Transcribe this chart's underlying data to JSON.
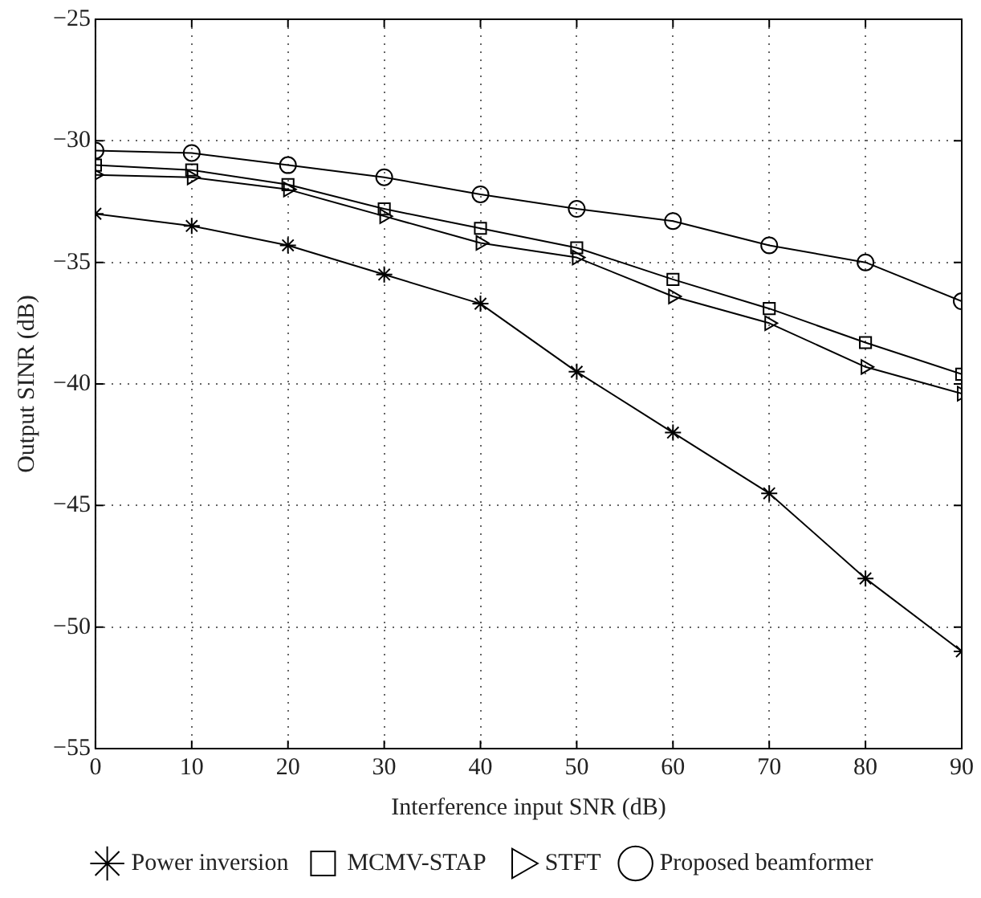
{
  "chart_data": {
    "type": "line",
    "xlabel": "Interference input SNR (dB)",
    "ylabel": "Output SINR (dB)",
    "x": [
      0,
      10,
      20,
      30,
      40,
      50,
      60,
      70,
      80,
      90
    ],
    "series": [
      {
        "name": "Power inversion",
        "color": "#000000",
        "marker": "cross",
        "values": [
          -33,
          -33.5,
          -34.3,
          -35.5,
          -36.7,
          -39.5,
          -42,
          -44.5,
          -48,
          -51
        ]
      },
      {
        "name": "MCMV-STAP",
        "color": "#000000",
        "marker": "square",
        "values": [
          -31,
          -31.2,
          -31.8,
          -32.8,
          -33.6,
          -34.4,
          -35.7,
          -36.9,
          -38.3,
          -39.6
        ]
      },
      {
        "name": "STFT",
        "color": "#000000",
        "marker": "triangle",
        "values": [
          -31.4,
          -31.5,
          -32,
          -33.1,
          -34.2,
          -34.8,
          -36.4,
          -37.5,
          -39.3,
          -40.4
        ]
      },
      {
        "name": "Proposed beamformer",
        "color": "#000000",
        "marker": "circle",
        "values": [
          -30.4,
          -30.5,
          -31,
          -31.5,
          -32.2,
          -32.8,
          -33.3,
          -34.3,
          -35,
          -36.6
        ]
      }
    ],
    "xlim": [
      0,
      90
    ],
    "xticks": [
      0,
      10,
      20,
      30,
      40,
      50,
      60,
      70,
      80,
      90
    ],
    "ylim": [
      -55,
      -25
    ],
    "yticks": [
      -55,
      -50,
      -45,
      -40,
      -35,
      -30,
      -25
    ],
    "grid": true,
    "legend": "bottom",
    "line_style": "solid"
  }
}
